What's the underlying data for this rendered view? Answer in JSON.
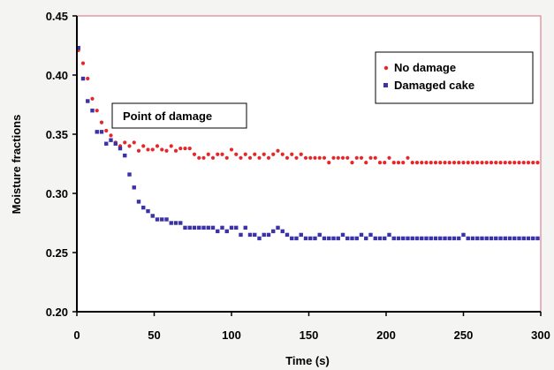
{
  "chart_data": {
    "type": "scatter",
    "title": "",
    "xlabel": "Time (s)",
    "ylabel": "Moisture fractions",
    "xlim": [
      0,
      300
    ],
    "ylim": [
      0.2,
      0.45
    ],
    "xticks": [
      0,
      50,
      100,
      150,
      200,
      250,
      300
    ],
    "xtick_labels": [
      "0",
      "50",
      "100",
      "150",
      "200",
      "250",
      "300"
    ],
    "yticks": [
      0.2,
      0.25,
      0.3,
      0.35,
      0.4,
      0.45
    ],
    "ytick_labels": [
      "0.20",
      "0.25",
      "0.30",
      "0.35",
      "0.40",
      "0.45"
    ],
    "grid": false,
    "legend_position": "top-right",
    "annotation": "Point of damage",
    "series": [
      {
        "name": "No damage",
        "color": "#e8262a",
        "marker": "circle",
        "x": [
          1,
          4,
          7,
          10,
          13,
          16,
          19,
          22,
          25,
          28,
          31,
          34,
          37,
          40,
          43,
          46,
          49,
          52,
          55,
          58,
          61,
          64,
          67,
          70,
          73,
          76,
          79,
          82,
          85,
          88,
          91,
          94,
          97,
          100,
          103,
          106,
          109,
          112,
          115,
          118,
          121,
          124,
          127,
          130,
          133,
          136,
          139,
          142,
          145,
          148,
          151,
          154,
          157,
          160,
          163,
          166,
          169,
          172,
          175,
          178,
          181,
          184,
          187,
          190,
          193,
          196,
          199,
          202,
          205,
          208,
          211,
          214,
          217,
          220,
          223,
          226,
          229,
          232,
          235,
          238,
          241,
          244,
          247,
          250,
          253,
          256,
          259,
          262,
          265,
          268,
          271,
          274,
          277,
          280,
          283,
          286,
          289,
          292,
          295,
          298
        ],
        "y": [
          0.421,
          0.41,
          0.397,
          0.38,
          0.37,
          0.36,
          0.353,
          0.349,
          0.343,
          0.34,
          0.343,
          0.34,
          0.343,
          0.336,
          0.34,
          0.337,
          0.337,
          0.34,
          0.337,
          0.336,
          0.34,
          0.336,
          0.338,
          0.338,
          0.338,
          0.333,
          0.33,
          0.33,
          0.333,
          0.33,
          0.333,
          0.333,
          0.33,
          0.337,
          0.333,
          0.33,
          0.333,
          0.33,
          0.333,
          0.33,
          0.333,
          0.33,
          0.333,
          0.336,
          0.333,
          0.33,
          0.333,
          0.33,
          0.333,
          0.33,
          0.33,
          0.33,
          0.33,
          0.33,
          0.326,
          0.33,
          0.33,
          0.33,
          0.33,
          0.326,
          0.33,
          0.33,
          0.326,
          0.33,
          0.33,
          0.326,
          0.326,
          0.33,
          0.326,
          0.326,
          0.326,
          0.33,
          0.326,
          0.326,
          0.326,
          0.326,
          0.326,
          0.326,
          0.326,
          0.326,
          0.326,
          0.326,
          0.326,
          0.326,
          0.326,
          0.326,
          0.326,
          0.326,
          0.326,
          0.326,
          0.326,
          0.326,
          0.326,
          0.326,
          0.326,
          0.326,
          0.326,
          0.326,
          0.326,
          0.326
        ]
      },
      {
        "name": "Damaged cake",
        "color": "#3b32a6",
        "marker": "square",
        "x": [
          1,
          4,
          7,
          10,
          13,
          16,
          19,
          22,
          25,
          28,
          31,
          34,
          37,
          40,
          43,
          46,
          49,
          52,
          55,
          58,
          61,
          64,
          67,
          70,
          73,
          76,
          79,
          82,
          85,
          88,
          91,
          94,
          97,
          100,
          103,
          106,
          109,
          112,
          115,
          118,
          121,
          124,
          127,
          130,
          133,
          136,
          139,
          142,
          145,
          148,
          151,
          154,
          157,
          160,
          163,
          166,
          169,
          172,
          175,
          178,
          181,
          184,
          187,
          190,
          193,
          196,
          199,
          202,
          205,
          208,
          211,
          214,
          217,
          220,
          223,
          226,
          229,
          232,
          235,
          238,
          241,
          244,
          247,
          250,
          253,
          256,
          259,
          262,
          265,
          268,
          271,
          274,
          277,
          280,
          283,
          286,
          289,
          292,
          295,
          298
        ],
        "y": [
          0.423,
          0.397,
          0.378,
          0.37,
          0.352,
          0.352,
          0.342,
          0.345,
          0.342,
          0.338,
          0.332,
          0.316,
          0.305,
          0.293,
          0.288,
          0.285,
          0.281,
          0.278,
          0.278,
          0.278,
          0.275,
          0.275,
          0.275,
          0.271,
          0.271,
          0.271,
          0.271,
          0.271,
          0.271,
          0.271,
          0.268,
          0.271,
          0.268,
          0.271,
          0.271,
          0.265,
          0.271,
          0.265,
          0.265,
          0.262,
          0.265,
          0.265,
          0.268,
          0.271,
          0.268,
          0.265,
          0.262,
          0.262,
          0.265,
          0.262,
          0.262,
          0.262,
          0.265,
          0.262,
          0.262,
          0.262,
          0.262,
          0.265,
          0.262,
          0.262,
          0.262,
          0.265,
          0.262,
          0.265,
          0.262,
          0.262,
          0.262,
          0.265,
          0.262,
          0.262,
          0.262,
          0.262,
          0.262,
          0.262,
          0.262,
          0.262,
          0.262,
          0.262,
          0.262,
          0.262,
          0.262,
          0.262,
          0.262,
          0.265,
          0.262,
          0.262,
          0.262,
          0.262,
          0.262,
          0.262,
          0.262,
          0.262,
          0.262,
          0.262,
          0.262,
          0.262,
          0.262,
          0.262,
          0.262,
          0.262
        ]
      }
    ]
  }
}
